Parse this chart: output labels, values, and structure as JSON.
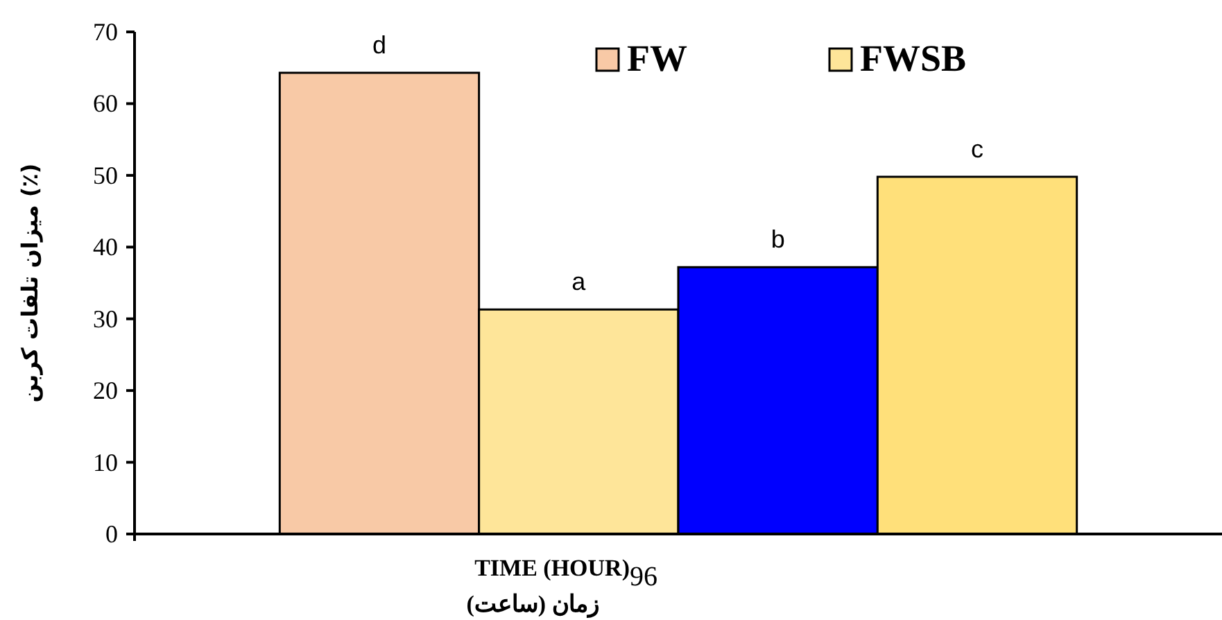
{
  "chart_data": {
    "type": "bar",
    "xlabel": "TIME (HOUR)\nزمان (ساعت)",
    "ylabel": "میزان تلفات کربن (٪)",
    "categories": [
      "96"
    ],
    "ylim": [
      0,
      70
    ],
    "yticks": [
      0,
      10,
      20,
      30,
      40,
      50,
      60,
      70
    ],
    "legend": "top",
    "grid": false,
    "series": [
      {
        "name": "FW",
        "color": "#f8c9a6",
        "values": [
          64.3
        ],
        "value_labels": [
          "d"
        ]
      },
      {
        "name": "FWSB",
        "color": "#fee599",
        "values": [
          31.3
        ],
        "value_labels": [
          "a"
        ]
      },
      {
        "color": "#0000ff",
        "values": [
          37.2
        ],
        "value_labels": [
          "b"
        ]
      },
      {
        "color": "#ffe07a",
        "values": [
          49.8
        ],
        "value_labels": [
          "c"
        ]
      }
    ]
  }
}
